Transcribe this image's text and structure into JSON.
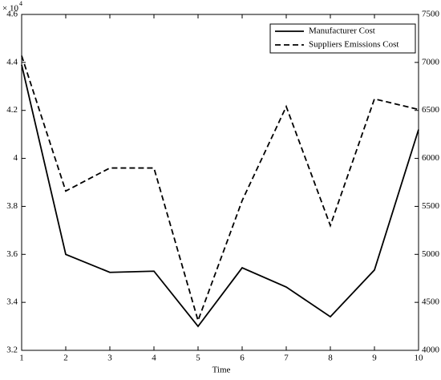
{
  "chart_data": {
    "type": "line",
    "x_label": "Time",
    "y_multiplier": "× 10",
    "y_multiplier_exponent": "4",
    "x": [
      1,
      2,
      3,
      4,
      5,
      6,
      7,
      8,
      9,
      10
    ],
    "xlim": [
      1,
      10
    ],
    "xticks": [
      1,
      2,
      3,
      4,
      5,
      6,
      7,
      8,
      9,
      10
    ],
    "ylim": [
      3.2,
      4.6
    ],
    "yticks": [
      3.2,
      3.4,
      3.6,
      3.8,
      4,
      4.2,
      4.4,
      4.6
    ],
    "y2lim": [
      4000,
      7500
    ],
    "y2ticks": [
      4000,
      4500,
      5000,
      5500,
      6000,
      6500,
      7000,
      7500
    ],
    "legend": "upper right",
    "series": [
      {
        "name": "Manufacturer Cost",
        "color": "#000000",
        "line_style": "solid",
        "axis": "y",
        "values": [
          4.39,
          3.6,
          3.525,
          3.53,
          3.3,
          3.544,
          3.464,
          3.34,
          3.535,
          4.12
        ]
      },
      {
        "name": "Suppliers Emissions Cost",
        "color": "#000000",
        "line_style": "dashed",
        "axis": "y2",
        "values": [
          7070,
          5660,
          5900,
          5900,
          4310,
          5560,
          6540,
          5300,
          6620,
          6510
        ]
      }
    ]
  }
}
